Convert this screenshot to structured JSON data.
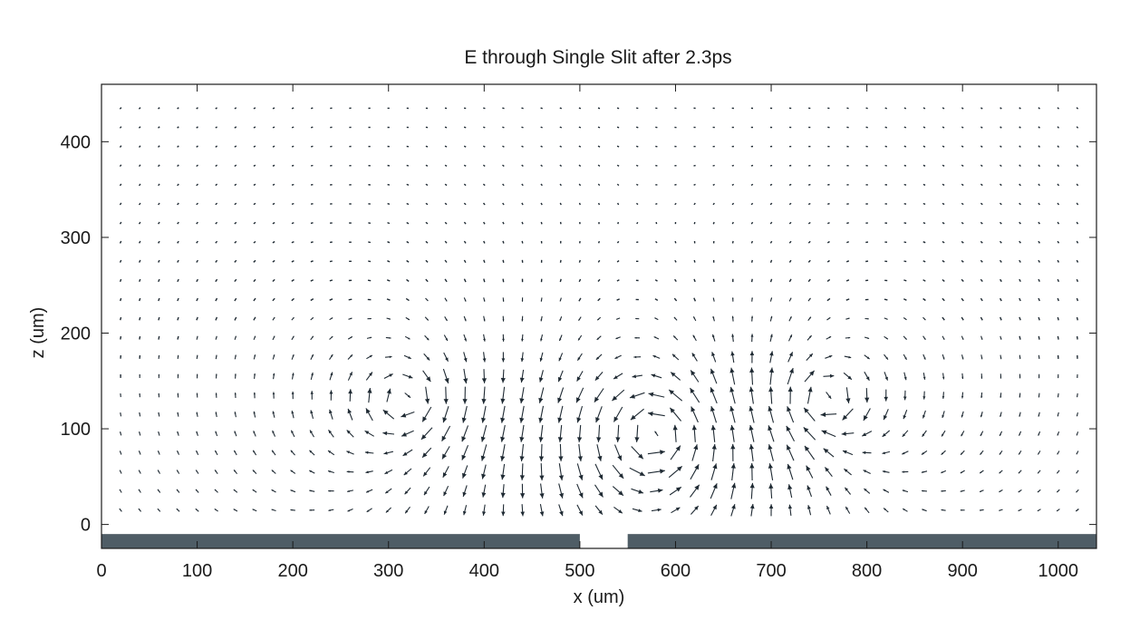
{
  "chart_data": {
    "type": "quiver",
    "title": "E through Single Slit after 2.3ps",
    "xlabel": "x (um)",
    "ylabel": "z (um)",
    "xlim": [
      0,
      1040
    ],
    "ylim": [
      -25,
      460
    ],
    "xticks": [
      "0",
      "100",
      "200",
      "300",
      "400",
      "500",
      "600",
      "700",
      "800",
      "900",
      "1000"
    ],
    "yticks": [
      "0",
      "100",
      "200",
      "300",
      "400"
    ],
    "grid": false,
    "legend": "none",
    "arrow_grid": {
      "x_start": 20,
      "x_step": 20,
      "x_count": 51,
      "z_start": 15,
      "z_step": 20,
      "z_count": 22
    },
    "vortices": [
      {
        "x": 580,
        "z": 95,
        "strength": 1.6
      },
      {
        "x": 750,
        "z": 130,
        "strength": -1.1
      },
      {
        "x": 320,
        "z": 130,
        "strength": -0.9
      }
    ],
    "conductor": [
      {
        "x_start": 0,
        "x_end": 500,
        "z_top": -10,
        "z_bottom": -25
      },
      {
        "x_start": 550,
        "x_end": 1040,
        "z_top": -10,
        "z_bottom": -25
      }
    ],
    "slit": {
      "x_start": 500,
      "x_end": 550
    },
    "colors": {
      "arrow": "#1f2a33",
      "conductor": "#4f5d66",
      "axis": "#1a1a1a"
    }
  }
}
